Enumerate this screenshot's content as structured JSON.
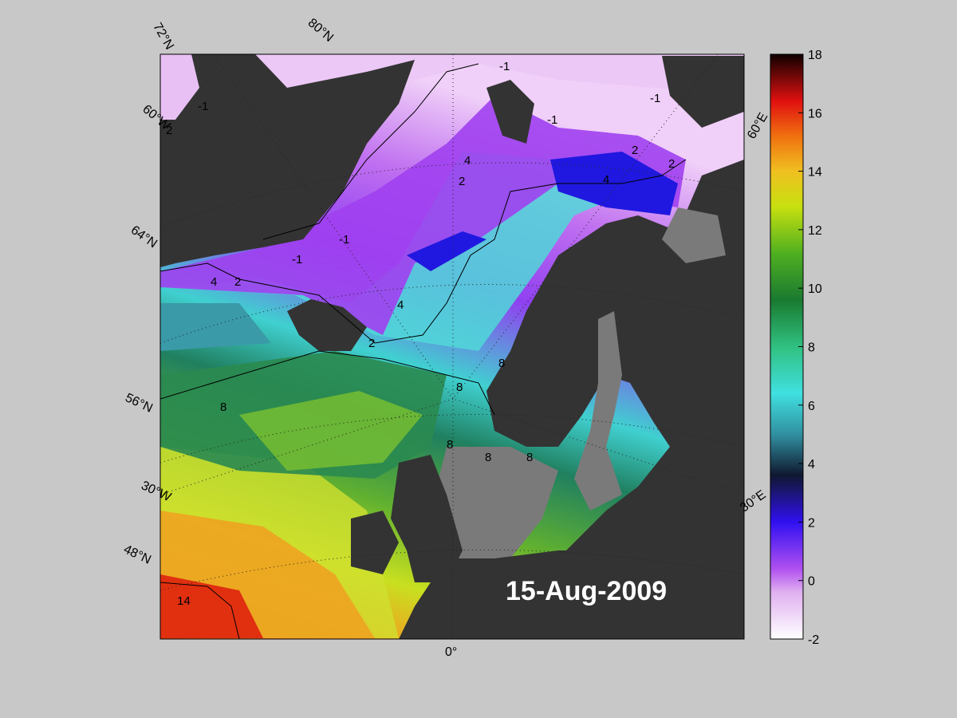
{
  "map": {
    "date_label": "15-Aug-2009",
    "lat_labels": [
      "72°N",
      "64°N",
      "56°N",
      "48°N"
    ],
    "lon_labels": [
      "80°N",
      "60°W",
      "30°W",
      "0°",
      "30°E",
      "60°E"
    ],
    "contour_labels": [
      "-1",
      "-1",
      "-1",
      "-1",
      "-1",
      "2",
      "4",
      "2",
      "4",
      "2",
      "4",
      "2",
      "4",
      "2",
      "2",
      "-1",
      "8",
      "8",
      "8",
      "8",
      "8",
      "8",
      "14"
    ]
  },
  "colorbar": {
    "ticks": [
      "18",
      "16",
      "14",
      "12",
      "10",
      "8",
      "6",
      "4",
      "2",
      "0",
      "-2"
    ],
    "min": -2,
    "max": 18,
    "stops": [
      "#ffffff",
      "#e8b4f0",
      "#a020f0",
      "#2010f0",
      "#102040",
      "#40a0a0",
      "#40e0e0",
      "#30c080",
      "#208040",
      "#50b020",
      "#c0e010",
      "#f0e020",
      "#f0a010",
      "#e04010",
      "#c00000",
      "#300000"
    ]
  }
}
